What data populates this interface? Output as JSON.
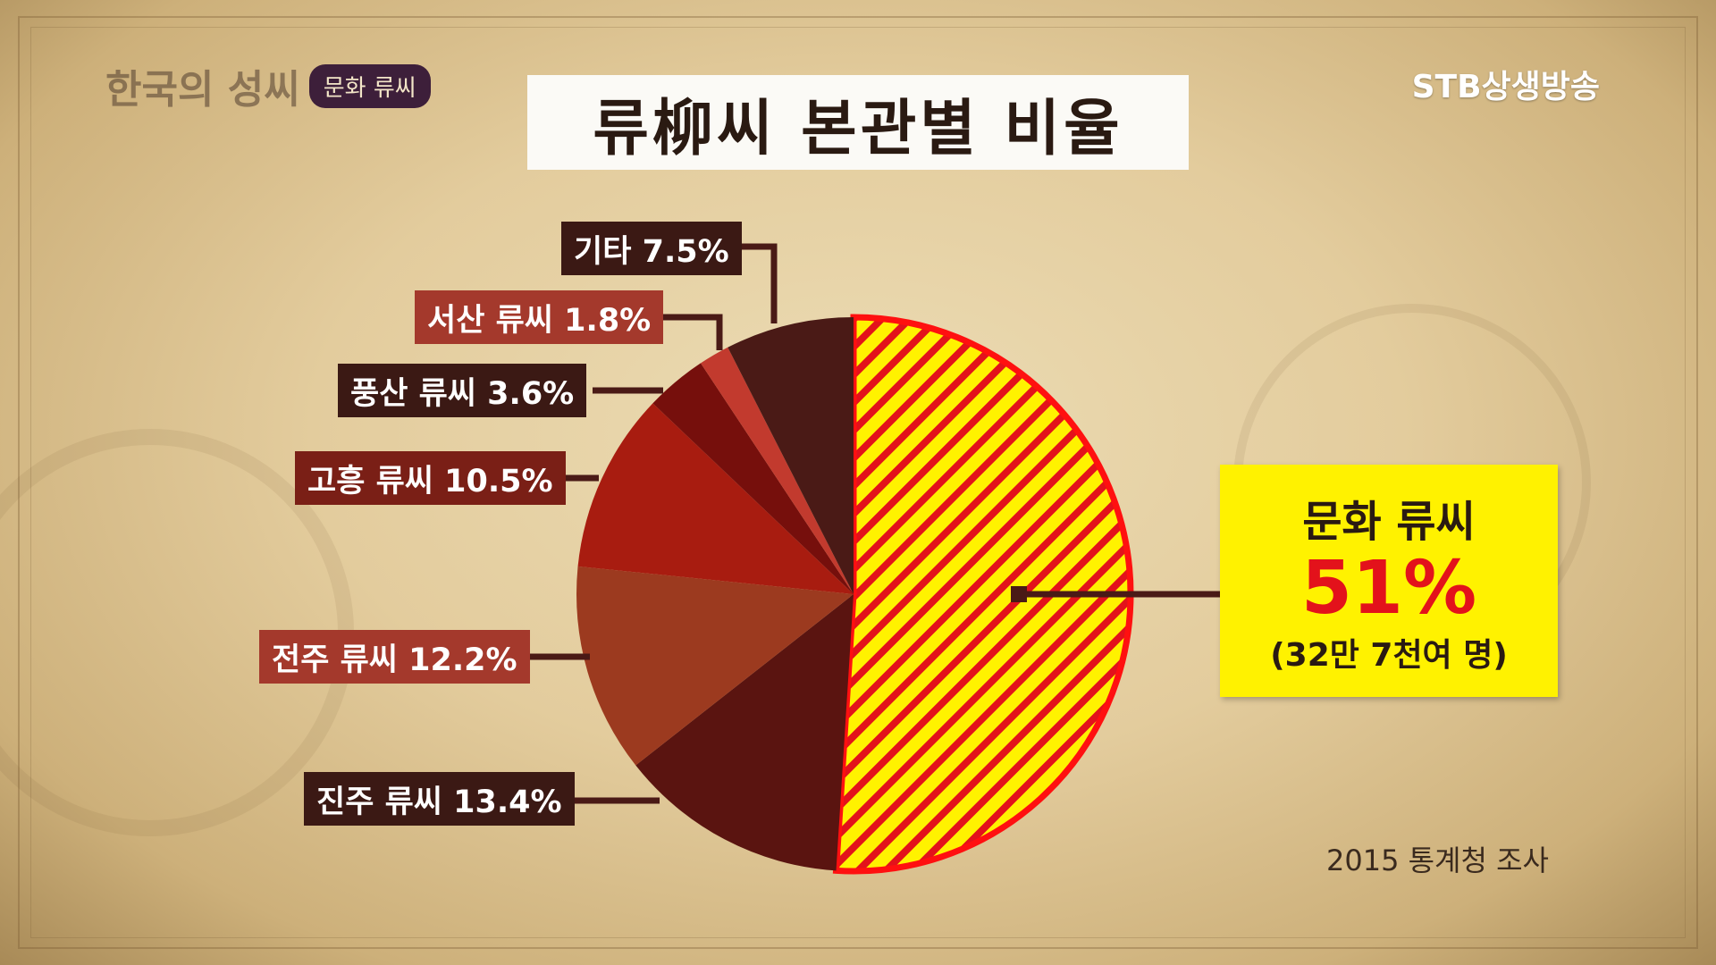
{
  "header": {
    "program_title": "한국의 성씨",
    "program_subtitle": "문화 류씨",
    "broadcaster": "STB상생방송"
  },
  "title": "류柳씨 본관별 비율",
  "source_note": "2015 통계청 조사",
  "colors": {
    "highlight_fill": "#fff200",
    "highlight_stripe": "#e3121b",
    "highlight_border": "#ff1010",
    "label_dark": "#3b1914",
    "label_red": "#a4392c"
  },
  "chart_data": {
    "type": "pie",
    "title": "류柳씨 본관별 비율",
    "slices": [
      {
        "label": "문화 류씨",
        "value": 51,
        "display": "51%",
        "note": "(32만 7천여 명)"
      },
      {
        "label": "진주 류씨",
        "value": 13.4,
        "display": "진주 류씨 13.4%"
      },
      {
        "label": "전주 류씨",
        "value": 12.2,
        "display": "전주 류씨 12.2%"
      },
      {
        "label": "고흥 류씨",
        "value": 10.5,
        "display": "고흥 류씨 10.5%"
      },
      {
        "label": "풍산 류씨",
        "value": 3.6,
        "display": "풍산 류씨 3.6%"
      },
      {
        "label": "서산 류씨",
        "value": 1.8,
        "display": "서산 류씨 1.8%"
      },
      {
        "label": "기타",
        "value": 7.5,
        "display": "기타 7.5%"
      }
    ]
  }
}
